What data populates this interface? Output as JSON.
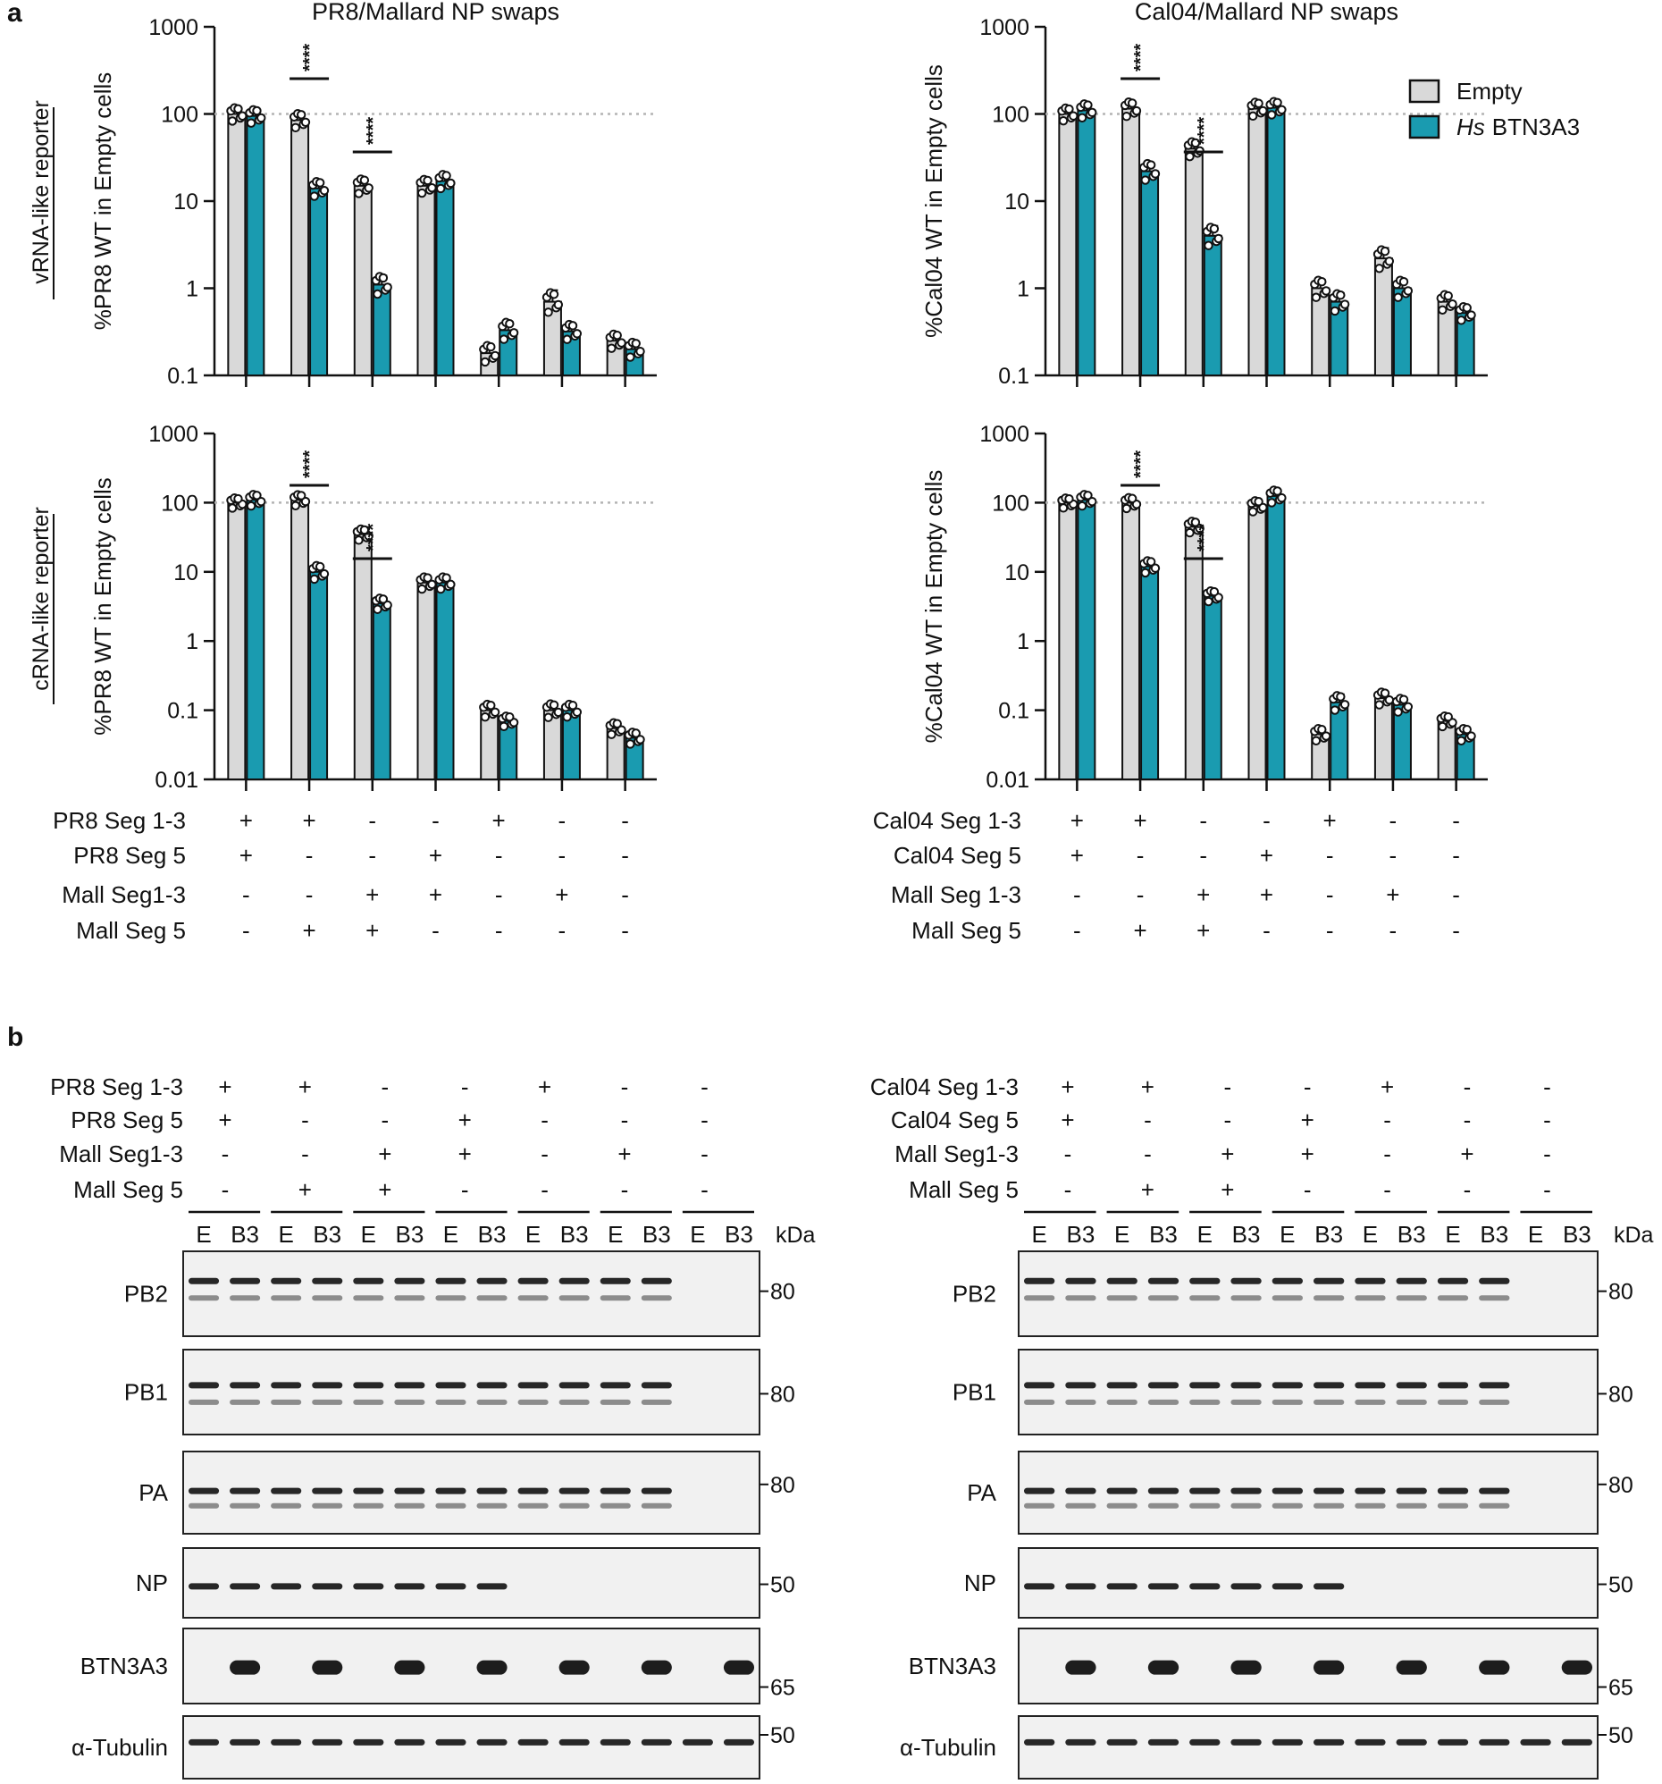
{
  "panel_a_label": "a",
  "panel_b_label": "b",
  "row_labels": [
    "vRNA-like reporter",
    "cRNA-like reporter"
  ],
  "legend": {
    "empty_label": "Empty",
    "btn_italic": "Hs",
    "btn_label": "BTN3A3",
    "empty_color": "#d9d9d9",
    "btn_color": "#1a9bb0"
  },
  "chart_data": [
    {
      "type": "bar",
      "id": "pr8-vrna",
      "title": "PR8/Mallard NP swaps",
      "ylabel": "%PR8 WT in Empty cells",
      "yscale": "log",
      "ylim": [
        0.1,
        1000
      ],
      "yticks": [
        "1000",
        "100",
        "10",
        "1",
        "0.1"
      ],
      "reference_line": 100,
      "series": [
        {
          "name": "Empty",
          "values": [
            100,
            85,
            15,
            15,
            0.18,
            0.7,
            0.25
          ],
          "sem": [
            8,
            10,
            2,
            1.5,
            0.04,
            0.25,
            0.03
          ]
        },
        {
          "name": "Hs BTN3A3",
          "values": [
            95,
            14,
            1.1,
            17,
            0.33,
            0.32,
            0.2
          ],
          "sem": [
            8,
            2,
            0.3,
            2,
            0.08,
            0.05,
            0.03
          ]
        }
      ],
      "significance": [
        {
          "group": 2,
          "label": "****"
        },
        {
          "group": 3,
          "label": "****"
        }
      ]
    },
    {
      "type": "bar",
      "id": "cal04-vrna",
      "title": "Cal04/Mallard NP swaps",
      "ylabel": "%Cal04 WT in Empty cells",
      "yscale": "log",
      "ylim": [
        0.1,
        1000
      ],
      "yticks": [
        "1000",
        "100",
        "10",
        "1",
        "0.1"
      ],
      "reference_line": 100,
      "series": [
        {
          "name": "Empty",
          "values": [
            100,
            115,
            40,
            115,
            1.0,
            2.2,
            0.7
          ],
          "sem": [
            6,
            15,
            6,
            12,
            0.25,
            0.7,
            0.12
          ]
        },
        {
          "name": "Hs BTN3A3",
          "values": [
            110,
            22,
            4,
            118,
            0.7,
            1.0,
            0.52
          ],
          "sem": [
            12,
            5,
            1.2,
            10,
            0.18,
            0.25,
            0.05
          ]
        }
      ],
      "significance": [
        {
          "group": 2,
          "label": "****"
        },
        {
          "group": 3,
          "label": "****"
        }
      ]
    },
    {
      "type": "bar",
      "id": "pr8-crna",
      "title": "",
      "ylabel": "%PR8 WT in Empty cells",
      "yscale": "log",
      "ylim": [
        0.01,
        1000
      ],
      "yticks": [
        "1000",
        "100",
        "10",
        "1",
        "0.1",
        "0.01"
      ],
      "reference_line": 100,
      "series": [
        {
          "name": "Empty",
          "values": [
            100,
            110,
            35,
            7,
            0.1,
            0.1,
            0.055
          ],
          "sem": [
            6,
            12,
            4,
            1.2,
            0.02,
            0.025,
            0.008
          ]
        },
        {
          "name": "Hs BTN3A3",
          "values": [
            110,
            10,
            3.5,
            7,
            0.07,
            0.1,
            0.04
          ],
          "sem": [
            15,
            2.5,
            0.4,
            1.2,
            0.005,
            0.02,
            0.006
          ]
        }
      ],
      "significance": [
        {
          "group": 2,
          "label": "****"
        },
        {
          "group": 3,
          "label": "****"
        }
      ]
    },
    {
      "type": "bar",
      "id": "cal04-crna",
      "title": "",
      "ylabel": "%Cal04 WT in Empty cells",
      "yscale": "log",
      "ylim": [
        0.01,
        1000
      ],
      "yticks": [
        "1000",
        "100",
        "10",
        "1",
        "0.1",
        "0.01"
      ],
      "reference_line": 100,
      "series": [
        {
          "name": "Empty",
          "values": [
            100,
            100,
            45,
            90,
            0.045,
            0.15,
            0.07
          ],
          "sem": [
            5,
            10,
            6,
            10,
            0.008,
            0.03,
            0.006
          ]
        },
        {
          "name": "Hs BTN3A3",
          "values": [
            110,
            12,
            4.5,
            125,
            0.13,
            0.12,
            0.045
          ],
          "sem": [
            15,
            2,
            0.4,
            25,
            0.04,
            0.03,
            0.008
          ]
        }
      ],
      "significance": [
        {
          "group": 2,
          "label": "****"
        },
        {
          "group": 3,
          "label": "****"
        }
      ]
    }
  ],
  "conditions_a": {
    "pr8": [
      {
        "label": "PR8 Seg 1-3",
        "signs": [
          "+",
          "+",
          "-",
          "-",
          "+",
          "-",
          "-"
        ]
      },
      {
        "label": "PR8 Seg 5",
        "signs": [
          "+",
          "-",
          "-",
          "+",
          "-",
          "-",
          "-"
        ]
      },
      {
        "label": "Mall Seg1-3",
        "signs": [
          "-",
          "-",
          "+",
          "+",
          "-",
          "+",
          "-"
        ]
      },
      {
        "label": "Mall Seg 5",
        "signs": [
          "-",
          "+",
          "+",
          "-",
          "-",
          "-",
          "-"
        ]
      }
    ],
    "cal04": [
      {
        "label": "Cal04 Seg 1-3",
        "signs": [
          "+",
          "+",
          "-",
          "-",
          "+",
          "-",
          "-"
        ]
      },
      {
        "label": "Cal04 Seg 5",
        "signs": [
          "+",
          "-",
          "-",
          "+",
          "-",
          "-",
          "-"
        ]
      },
      {
        "label": "Mall Seg 1-3",
        "signs": [
          "-",
          "-",
          "+",
          "+",
          "-",
          "+",
          "-"
        ]
      },
      {
        "label": "Mall Seg 5",
        "signs": [
          "-",
          "+",
          "+",
          "-",
          "-",
          "-",
          "-"
        ]
      }
    ]
  },
  "conditions_b": {
    "pr8": [
      {
        "label": "PR8 Seg 1-3",
        "signs": [
          "+",
          "+",
          "-",
          "-",
          "+",
          "-",
          "-"
        ]
      },
      {
        "label": "PR8 Seg 5",
        "signs": [
          "+",
          "-",
          "-",
          "+",
          "-",
          "-",
          "-"
        ]
      },
      {
        "label": "Mall Seg1-3",
        "signs": [
          "-",
          "-",
          "+",
          "+",
          "-",
          "+",
          "-"
        ]
      },
      {
        "label": "Mall Seg 5",
        "signs": [
          "-",
          "+",
          "+",
          "-",
          "-",
          "-",
          "-"
        ]
      }
    ],
    "cal04": [
      {
        "label": "Cal04 Seg 1-3",
        "signs": [
          "+",
          "+",
          "-",
          "-",
          "+",
          "-",
          "-"
        ]
      },
      {
        "label": "Cal04 Seg 5",
        "signs": [
          "+",
          "-",
          "-",
          "+",
          "-",
          "-",
          "-"
        ]
      },
      {
        "label": "Mall Seg1-3",
        "signs": [
          "-",
          "-",
          "+",
          "+",
          "-",
          "+",
          "-"
        ]
      },
      {
        "label": "Mall Seg 5",
        "signs": [
          "-",
          "+",
          "+",
          "-",
          "-",
          "-",
          "-"
        ]
      }
    ]
  },
  "lane_labels": [
    "E",
    "B3"
  ],
  "kda_label": "kDa",
  "blots": {
    "pr8": [
      {
        "label": "PB2",
        "markers": [
          "80"
        ]
      },
      {
        "label": "PB1",
        "markers": [
          "80"
        ]
      },
      {
        "label": "PA",
        "markers": [
          "80"
        ]
      },
      {
        "label": "NP",
        "markers": [
          "50"
        ]
      },
      {
        "label": "BTN3A3",
        "markers": [
          "65"
        ]
      },
      {
        "label": "α-Tubulin",
        "markers": [
          "50"
        ]
      }
    ],
    "cal04": [
      {
        "label": "PB2",
        "markers": [
          "80"
        ]
      },
      {
        "label": "PB1",
        "markers": [
          "80"
        ]
      },
      {
        "label": "PA",
        "markers": [
          "80"
        ]
      },
      {
        "label": "NP",
        "markers": [
          "50"
        ]
      },
      {
        "label": "BTN3A3",
        "markers": [
          "65"
        ]
      },
      {
        "label": "α-Tubulin",
        "markers": [
          "50"
        ]
      }
    ]
  }
}
